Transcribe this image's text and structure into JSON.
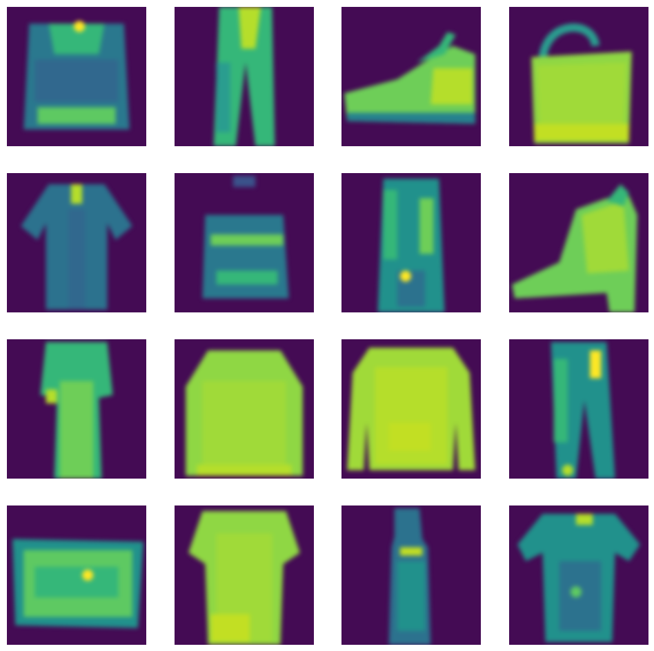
{
  "figure": {
    "rows": 4,
    "cols": 4,
    "colormap": {
      "background": "#440b54",
      "low": "#3b528b",
      "mid": "#21918c",
      "high": "#5ec962",
      "peak": "#fde725"
    },
    "tiles": [
      {
        "item": "coat",
        "icon": "coat-icon"
      },
      {
        "item": "trouser",
        "icon": "trouser-icon"
      },
      {
        "item": "sneaker",
        "icon": "sneaker-icon"
      },
      {
        "item": "bag",
        "icon": "bag-icon"
      },
      {
        "item": "shirt",
        "icon": "shirt-icon"
      },
      {
        "item": "bag",
        "icon": "bag-icon"
      },
      {
        "item": "dress",
        "icon": "dress-icon"
      },
      {
        "item": "ankle-boot",
        "icon": "ankle-boot-icon"
      },
      {
        "item": "dress",
        "icon": "dress-icon"
      },
      {
        "item": "pullover",
        "icon": "pullover-icon"
      },
      {
        "item": "pullover",
        "icon": "pullover-icon"
      },
      {
        "item": "trouser",
        "icon": "trouser-icon"
      },
      {
        "item": "bag",
        "icon": "bag-icon"
      },
      {
        "item": "t-shirt",
        "icon": "t-shirt-icon"
      },
      {
        "item": "dress",
        "icon": "dress-icon"
      },
      {
        "item": "t-shirt",
        "icon": "t-shirt-icon"
      }
    ]
  }
}
